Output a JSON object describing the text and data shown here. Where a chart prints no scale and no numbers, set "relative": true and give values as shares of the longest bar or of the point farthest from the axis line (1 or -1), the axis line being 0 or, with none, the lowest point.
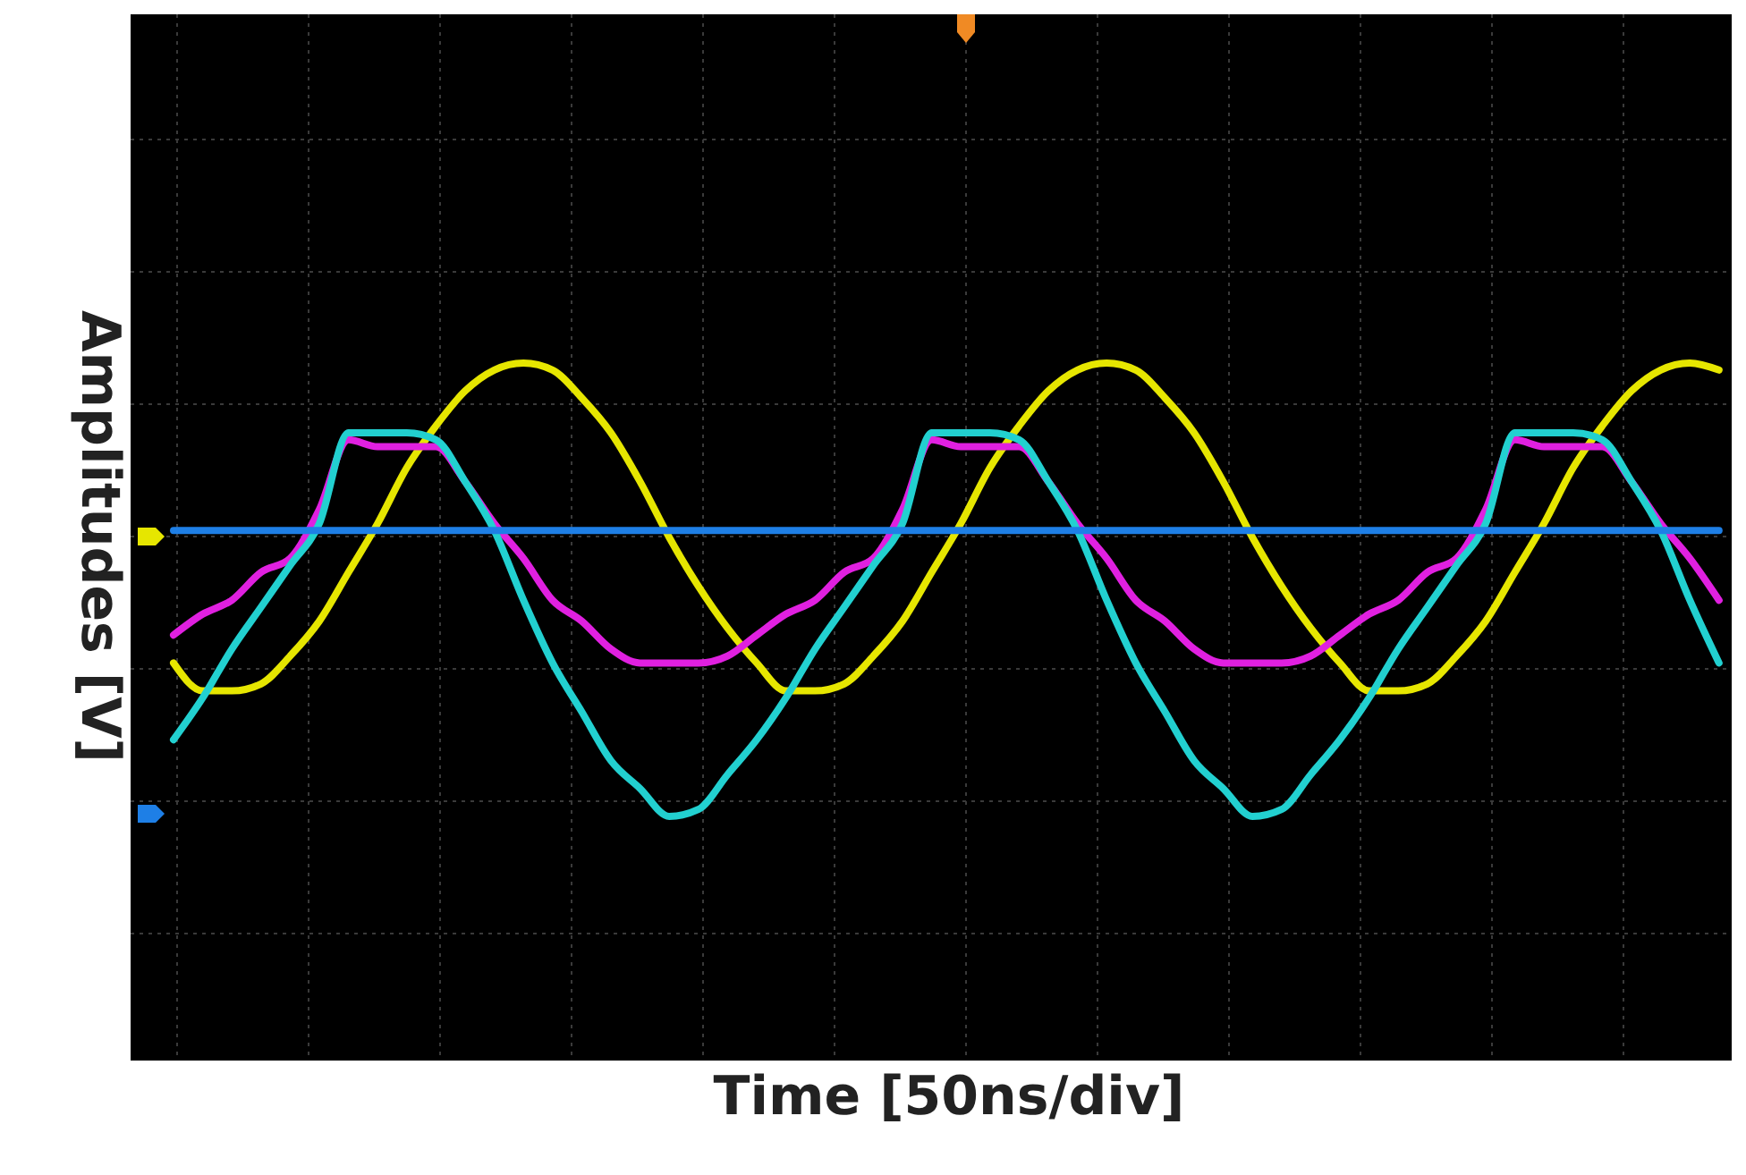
{
  "chart_data": {
    "type": "line",
    "xlabel": "Time [50ns/div]",
    "ylabel": "Amplitudes [V]",
    "relative": true,
    "grid": true,
    "categories": [
      null,
      null,
      null,
      null,
      null,
      null,
      null,
      null,
      null,
      null,
      null,
      null,
      null,
      null,
      null,
      null,
      null,
      null,
      null,
      null,
      null,
      null,
      null,
      null,
      null,
      null,
      null,
      null,
      null,
      null,
      null,
      null,
      null,
      null,
      null,
      null,
      null,
      null,
      null,
      null,
      null,
      null,
      null,
      null,
      null,
      null,
      null,
      null,
      null,
      null,
      null,
      null,
      null,
      null
    ],
    "series": [
      {
        "color": "#e6e600",
        "values": [
          0.57,
          0.53,
          0.53,
          0.54,
          0.58,
          0.63,
          0.7,
          0.77,
          0.85,
          0.91,
          0.96,
          0.99,
          1.0,
          0.99,
          0.95,
          0.9,
          0.83,
          0.75,
          0.68,
          0.62,
          0.57,
          0.53,
          0.53,
          0.54,
          0.58,
          0.63,
          0.7,
          0.77,
          0.85,
          0.91,
          0.96,
          0.99,
          1.0,
          0.99,
          0.95,
          0.9,
          0.83,
          0.75,
          0.68,
          0.62,
          0.57,
          0.53,
          0.53,
          0.54,
          0.58,
          0.63,
          0.7,
          0.77,
          0.85,
          0.91,
          0.96,
          0.99,
          1.0,
          0.99
        ]
      },
      {
        "color": "#e020e0",
        "values": [
          0.61,
          0.64,
          0.66,
          0.7,
          0.72,
          0.79,
          0.89,
          0.88,
          0.88,
          0.88,
          0.83,
          0.77,
          0.72,
          0.66,
          0.63,
          0.59,
          0.57,
          0.57,
          0.57,
          0.58,
          0.61,
          0.64,
          0.66,
          0.7,
          0.72,
          0.79,
          0.89,
          0.88,
          0.88,
          0.88,
          0.83,
          0.77,
          0.72,
          0.66,
          0.63,
          0.59,
          0.57,
          0.57,
          0.57,
          0.58,
          0.61,
          0.64,
          0.66,
          0.7,
          0.72,
          0.79,
          0.89,
          0.88,
          0.88,
          0.88,
          0.83,
          0.77,
          0.72,
          0.66
        ]
      },
      {
        "color": "#22d0d0",
        "values": [
          0.46,
          0.52,
          0.59,
          0.65,
          0.71,
          0.77,
          0.9,
          0.9,
          0.9,
          0.89,
          0.83,
          0.76,
          0.66,
          0.57,
          0.5,
          0.43,
          0.39,
          0.35,
          0.36,
          0.41,
          0.46,
          0.52,
          0.59,
          0.65,
          0.71,
          0.77,
          0.9,
          0.9,
          0.9,
          0.89,
          0.83,
          0.76,
          0.66,
          0.57,
          0.5,
          0.43,
          0.39,
          0.35,
          0.36,
          0.41,
          0.46,
          0.52,
          0.59,
          0.65,
          0.71,
          0.77,
          0.9,
          0.9,
          0.9,
          0.89,
          0.83,
          0.76,
          0.66,
          0.57
        ]
      },
      {
        "color": "#1e7fe6",
        "values": [
          0.76,
          0.76,
          0.76,
          0.76,
          0.76,
          0.76,
          0.76,
          0.76,
          0.76,
          0.76,
          0.76,
          0.76,
          0.76,
          0.76,
          0.76,
          0.76,
          0.76,
          0.76,
          0.76,
          0.76,
          0.76,
          0.76,
          0.76,
          0.76,
          0.76,
          0.76,
          0.76,
          0.76,
          0.76,
          0.76,
          0.76,
          0.76,
          0.76,
          0.76,
          0.76,
          0.76,
          0.76,
          0.76,
          0.76,
          0.76,
          0.76,
          0.76,
          0.76,
          0.76,
          0.76,
          0.76,
          0.76,
          0.76,
          0.76,
          0.76,
          0.76,
          0.76,
          0.76,
          0.76
        ]
      }
    ]
  }
}
